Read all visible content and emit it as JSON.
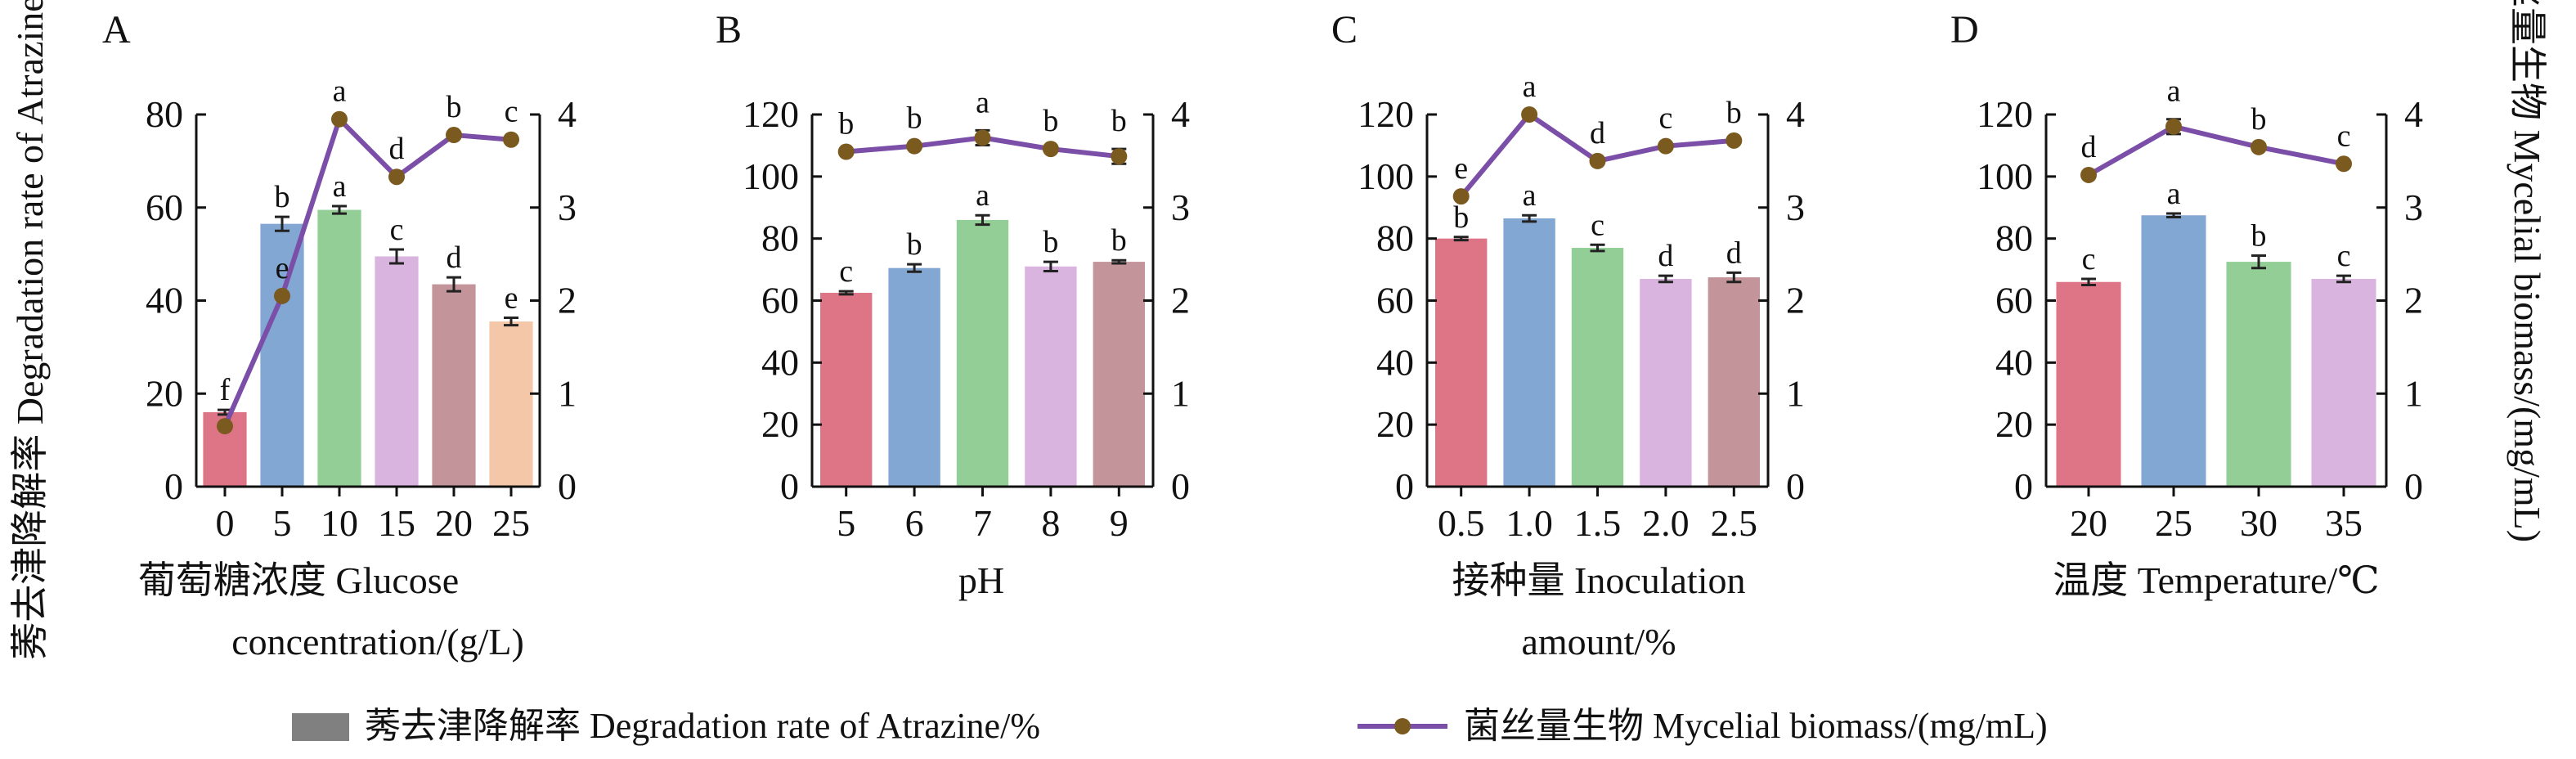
{
  "left_axis_label": "莠去津降解率 Degradation rate of Atrazine/%",
  "right_axis_label": "菌丝量生物 Mycelial biomass/(mg/mL)",
  "legend": {
    "bar_label": "莠去津降解率 Degradation rate of Atrazine/%",
    "line_label": "菌丝量生物 Mycelial biomass/(mg/mL)"
  },
  "colors": {
    "legend_bar": "#808080",
    "line": "#7B4EA8",
    "marker": "#7A5A1E",
    "bars": [
      "#DE7586",
      "#82A7D3",
      "#92CE95",
      "#D9B4DE",
      "#C39499",
      "#F4C7A8"
    ]
  },
  "chart_data": [
    {
      "panel": "A",
      "type": "bar",
      "xlabel": "葡萄糖浓度 Glucose concentration/(g/L)",
      "categories": [
        "0",
        "5",
        "10",
        "15",
        "20",
        "25"
      ],
      "ylim": [
        0,
        80
      ],
      "y_ticks": [
        0,
        20,
        40,
        60,
        80
      ],
      "y2lim": [
        0,
        4
      ],
      "y2_ticks": [
        0,
        1,
        2,
        3,
        4
      ],
      "series": [
        {
          "name": "莠去津降解率 Degradation rate of Atrazine/%",
          "axis": "left",
          "type": "bar",
          "values": [
            16,
            56.5,
            59.5,
            49.5,
            43.5,
            35.5
          ],
          "errors": [
            0.5,
            1.5,
            0.8,
            1.5,
            1.5,
            0.8
          ],
          "letters": [
            "f",
            "b",
            "a",
            "c",
            "d",
            "e"
          ]
        },
        {
          "name": "菌丝量生物 Mycelial biomass/(mg/mL)",
          "axis": "right",
          "type": "line",
          "values": [
            0.65,
            2.05,
            3.95,
            3.33,
            3.78,
            3.73
          ],
          "errors": [
            0,
            0,
            0,
            0,
            0,
            0
          ],
          "letters": [
            "",
            "e",
            "a",
            "d",
            "b",
            "c"
          ]
        }
      ]
    },
    {
      "panel": "B",
      "type": "bar",
      "xlabel": "pH",
      "categories": [
        "5",
        "6",
        "7",
        "8",
        "9"
      ],
      "ylim": [
        0,
        120
      ],
      "y_ticks": [
        0,
        20,
        40,
        60,
        80,
        100,
        120
      ],
      "y2lim": [
        0,
        4
      ],
      "y2_ticks": [
        0,
        1,
        2,
        3,
        4
      ],
      "series": [
        {
          "name": "莠去津降解率 Degradation rate of Atrazine/%",
          "axis": "left",
          "type": "bar",
          "values": [
            62.5,
            70.5,
            86,
            71,
            72.5
          ],
          "errors": [
            0.5,
            1.2,
            1.5,
            1.5,
            0.5
          ],
          "letters": [
            "c",
            "b",
            "a",
            "b",
            "b"
          ]
        },
        {
          "name": "菌丝量生物 Mycelial biomass/(mg/mL)",
          "axis": "right",
          "type": "line",
          "values": [
            3.6,
            3.66,
            3.75,
            3.63,
            3.55
          ],
          "errors": [
            0,
            0,
            0.08,
            0,
            0.08
          ],
          "letters": [
            "b",
            "b",
            "a",
            "b",
            "b"
          ]
        }
      ]
    },
    {
      "panel": "C",
      "type": "bar",
      "xlabel": "接种量 Inoculation amount/%",
      "categories": [
        "0.5",
        "1.0",
        "1.5",
        "2.0",
        "2.5"
      ],
      "ylim": [
        0,
        120
      ],
      "y_ticks": [
        0,
        20,
        40,
        60,
        80,
        100,
        120
      ],
      "y2lim": [
        0,
        4
      ],
      "y2_ticks": [
        0,
        1,
        2,
        3,
        4
      ],
      "series": [
        {
          "name": "莠去津降解率 Degradation rate of Atrazine/%",
          "axis": "left",
          "type": "bar",
          "values": [
            80,
            86.5,
            77,
            67,
            67.5
          ],
          "errors": [
            0.5,
            1.0,
            1.0,
            1.0,
            1.5
          ],
          "letters": [
            "b",
            "a",
            "c",
            "d",
            "d"
          ]
        },
        {
          "name": "菌丝量生物 Mycelial biomass/(mg/mL)",
          "axis": "right",
          "type": "line",
          "values": [
            3.12,
            4.0,
            3.5,
            3.66,
            3.72
          ],
          "errors": [
            0,
            0,
            0,
            0,
            0
          ],
          "letters": [
            "e",
            "a",
            "d",
            "c",
            "b"
          ]
        }
      ]
    },
    {
      "panel": "D",
      "type": "bar",
      "xlabel": "温度 Temperature/℃",
      "categories": [
        "20",
        "25",
        "30",
        "35"
      ],
      "ylim": [
        0,
        120
      ],
      "y_ticks": [
        0,
        20,
        40,
        60,
        80,
        100,
        120
      ],
      "y2lim": [
        0,
        4
      ],
      "y2_ticks": [
        0,
        1,
        2,
        3,
        4
      ],
      "series": [
        {
          "name": "莠去津降解率 Degradation rate of Atrazine/%",
          "axis": "left",
          "type": "bar",
          "values": [
            66,
            87.5,
            72.5,
            67
          ],
          "errors": [
            1.0,
            0.6,
            2.0,
            1.0
          ],
          "letters": [
            "c",
            "a",
            "b",
            "c"
          ]
        },
        {
          "name": "菌丝量生物 Mycelial biomass/(mg/mL)",
          "axis": "right",
          "type": "line",
          "values": [
            3.35,
            3.87,
            3.65,
            3.47
          ],
          "errors": [
            0,
            0.08,
            0,
            0
          ],
          "letters": [
            "d",
            "a",
            "b",
            "c"
          ]
        }
      ]
    }
  ]
}
